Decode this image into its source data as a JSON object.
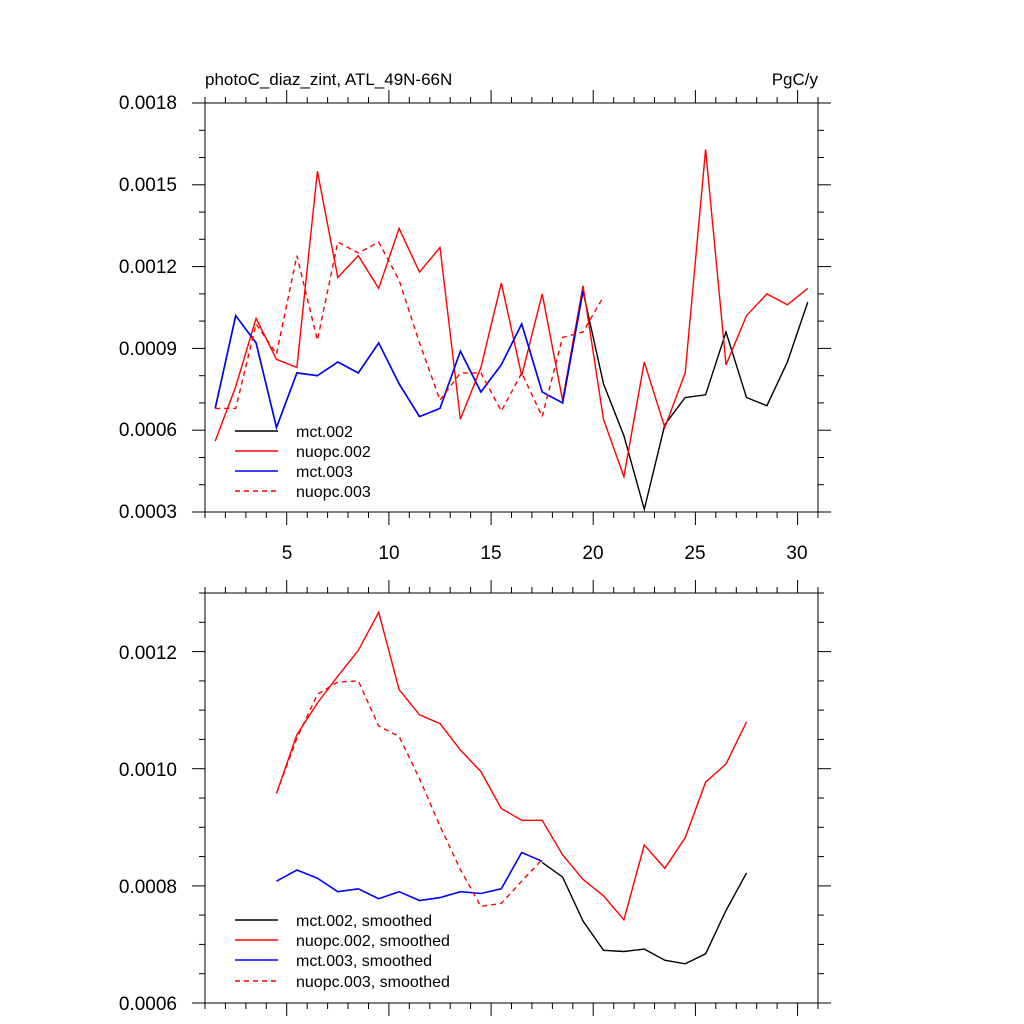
{
  "chart_data": [
    {
      "type": "line",
      "title": "photoC_diaz_zint, ATL_49N-66N",
      "units": "PgC/y",
      "xlabel": "",
      "ylabel": "",
      "xlim": [
        1,
        31
      ],
      "ylim": [
        0.0003,
        0.0018
      ],
      "xticks": [
        5,
        10,
        15,
        20,
        25,
        30
      ],
      "xticklabels": [
        "5",
        "10",
        "15",
        "20",
        "25",
        "30"
      ],
      "yticks": [
        0.0003,
        0.0006,
        0.0009,
        0.0012,
        0.0015,
        0.0018
      ],
      "yticklabels": [
        "0.0003",
        "0.0006",
        "0.0009",
        "0.0012",
        "0.0015",
        "0.0018"
      ],
      "legend_position": "bottom-left",
      "series": [
        {
          "name": "mct.002",
          "color": "#000000",
          "dash": "solid",
          "x": [
            1.5,
            2.5,
            3.5,
            4.5,
            5.5,
            6.5,
            7.5,
            8.5,
            9.5,
            10.5,
            11.5,
            12.5,
            13.5,
            14.5,
            15.5,
            16.5,
            17.5,
            18.5,
            19.5,
            20.5,
            21.5,
            22.5,
            23.5,
            24.5,
            25.5,
            26.5,
            27.5,
            28.5,
            29.5,
            30.5
          ],
          "values": [
            0.00068,
            0.00102,
            0.00092,
            0.00061,
            0.00081,
            0.0008,
            0.00085,
            0.00081,
            0.00092,
            0.00077,
            0.00065,
            0.00068,
            0.00089,
            0.00074,
            0.00084,
            0.00099,
            0.00074,
            0.0007,
            0.00111,
            0.00077,
            0.00058,
            0.00031,
            0.00062,
            0.00072,
            0.00073,
            0.00096,
            0.00072,
            0.00069,
            0.00085,
            0.00107
          ]
        },
        {
          "name": "nuopc.002",
          "color": "#ff0000",
          "dash": "solid",
          "x": [
            1.5,
            2.5,
            3.5,
            4.5,
            5.5,
            6.5,
            7.5,
            8.5,
            9.5,
            10.5,
            11.5,
            12.5,
            13.5,
            14.5,
            15.5,
            16.5,
            17.5,
            18.5,
            19.5,
            20.5,
            21.5,
            22.5,
            23.5,
            24.5,
            25.5,
            26.5,
            27.5,
            28.5,
            29.5,
            30.5
          ],
          "values": [
            0.00056,
            0.00076,
            0.00101,
            0.00086,
            0.00083,
            0.00155,
            0.00116,
            0.00124,
            0.00112,
            0.00134,
            0.00118,
            0.00127,
            0.00064,
            0.00083,
            0.00114,
            0.0008,
            0.0011,
            0.00071,
            0.00113,
            0.00064,
            0.00043,
            0.00085,
            0.00061,
            0.00081,
            0.00163,
            0.00084,
            0.00102,
            0.0011,
            0.00106,
            0.00112
          ]
        },
        {
          "name": "mct.003",
          "color": "#0000ff",
          "dash": "solid",
          "x": [
            1.5,
            2.5,
            3.5,
            4.5,
            5.5,
            6.5,
            7.5,
            8.5,
            9.5,
            10.5,
            11.5,
            12.5,
            13.5,
            14.5,
            15.5,
            16.5,
            17.5,
            18.5,
            19.5
          ],
          "values": [
            0.00068,
            0.00102,
            0.00092,
            0.00061,
            0.00081,
            0.0008,
            0.00085,
            0.00081,
            0.00092,
            0.00077,
            0.00065,
            0.00068,
            0.00089,
            0.00074,
            0.00084,
            0.00099,
            0.00074,
            0.0007,
            0.00111
          ]
        },
        {
          "name": "nuopc.003",
          "color": "#ff0000",
          "dash": "dashed",
          "x": [
            1.5,
            2.5,
            3.5,
            4.5,
            5.5,
            6.5,
            7.5,
            8.5,
            9.5,
            10.5,
            11.5,
            12.5,
            13.5,
            14.5,
            15.5,
            16.5,
            17.5,
            18.5,
            19.5,
            20.5
          ],
          "values": [
            0.00068,
            0.00068,
            0.00099,
            0.00088,
            0.00124,
            0.00093,
            0.00129,
            0.00125,
            0.00129,
            0.00115,
            0.00092,
            0.00071,
            0.00081,
            0.00081,
            0.00067,
            0.00081,
            0.00065,
            0.00094,
            0.00096,
            0.00109
          ]
        }
      ]
    },
    {
      "type": "line",
      "title": "",
      "xlabel": "",
      "ylabel": "",
      "xlim": [
        1,
        31
      ],
      "ylim": [
        0.0006,
        0.0013
      ],
      "xticks": [
        5,
        10,
        15,
        20,
        25,
        30
      ],
      "xticklabels": [],
      "yticks": [
        0.0006,
        0.0008,
        0.001,
        0.0012
      ],
      "yticklabels": [
        "0.0006",
        "0.0008",
        "0.0010",
        "0.0012"
      ],
      "legend_position": "bottom-left",
      "series": [
        {
          "name": "mct.002, smoothed",
          "color": "#000000",
          "dash": "solid",
          "x": [
            17.5,
            18.5,
            19.5,
            20.5,
            21.5,
            22.5,
            23.5,
            24.5,
            25.5,
            26.5,
            27.5
          ],
          "values": [
            0.00084,
            0.000815,
            0.00074,
            0.00069,
            0.000688,
            0.000692,
            0.000673,
            0.000667,
            0.000684,
            0.000758,
            0.000822
          ]
        },
        {
          "name": "nuopc.002, smoothed",
          "color": "#ff0000",
          "dash": "solid",
          "x": [
            4.5,
            5.5,
            6.5,
            7.5,
            8.5,
            9.5,
            10.5,
            11.5,
            12.5,
            13.5,
            14.5,
            15.5,
            16.5,
            17.5,
            18.5,
            19.5,
            20.5,
            21.5,
            22.5,
            23.5,
            24.5,
            25.5,
            26.5,
            27.5
          ],
          "values": [
            0.000958,
            0.001058,
            0.001112,
            0.001158,
            0.001202,
            0.001267,
            0.001135,
            0.001092,
            0.001077,
            0.001032,
            0.000995,
            0.000932,
            0.000912,
            0.000912,
            0.000853,
            0.000811,
            0.000783,
            0.000742,
            0.00087,
            0.00083,
            0.000882,
            0.000977,
            0.001008,
            0.00108
          ]
        },
        {
          "name": "mct.003, smoothed",
          "color": "#0000ff",
          "dash": "solid",
          "x": [
            4.5,
            5.5,
            6.5,
            7.5,
            8.5,
            9.5,
            10.5,
            11.5,
            12.5,
            13.5,
            14.5,
            15.5,
            16.5,
            17.5
          ],
          "values": [
            0.000808,
            0.000827,
            0.000813,
            0.00079,
            0.000795,
            0.000778,
            0.00079,
            0.000775,
            0.00078,
            0.00079,
            0.000787,
            0.000795,
            0.000857,
            0.000842
          ]
        },
        {
          "name": "nuopc.003, smoothed",
          "color": "#ff0000",
          "dash": "dashed",
          "x": [
            4.5,
            5.5,
            6.5,
            7.5,
            8.5,
            9.5,
            10.5,
            11.5,
            12.5,
            13.5,
            14.5,
            15.5,
            16.5,
            17.5
          ],
          "values": [
            0.000958,
            0.001052,
            0.001127,
            0.001148,
            0.00115,
            0.001073,
            0.001055,
            0.000983,
            0.000902,
            0.000828,
            0.000765,
            0.00077,
            0.000808,
            0.000845
          ]
        }
      ]
    }
  ]
}
